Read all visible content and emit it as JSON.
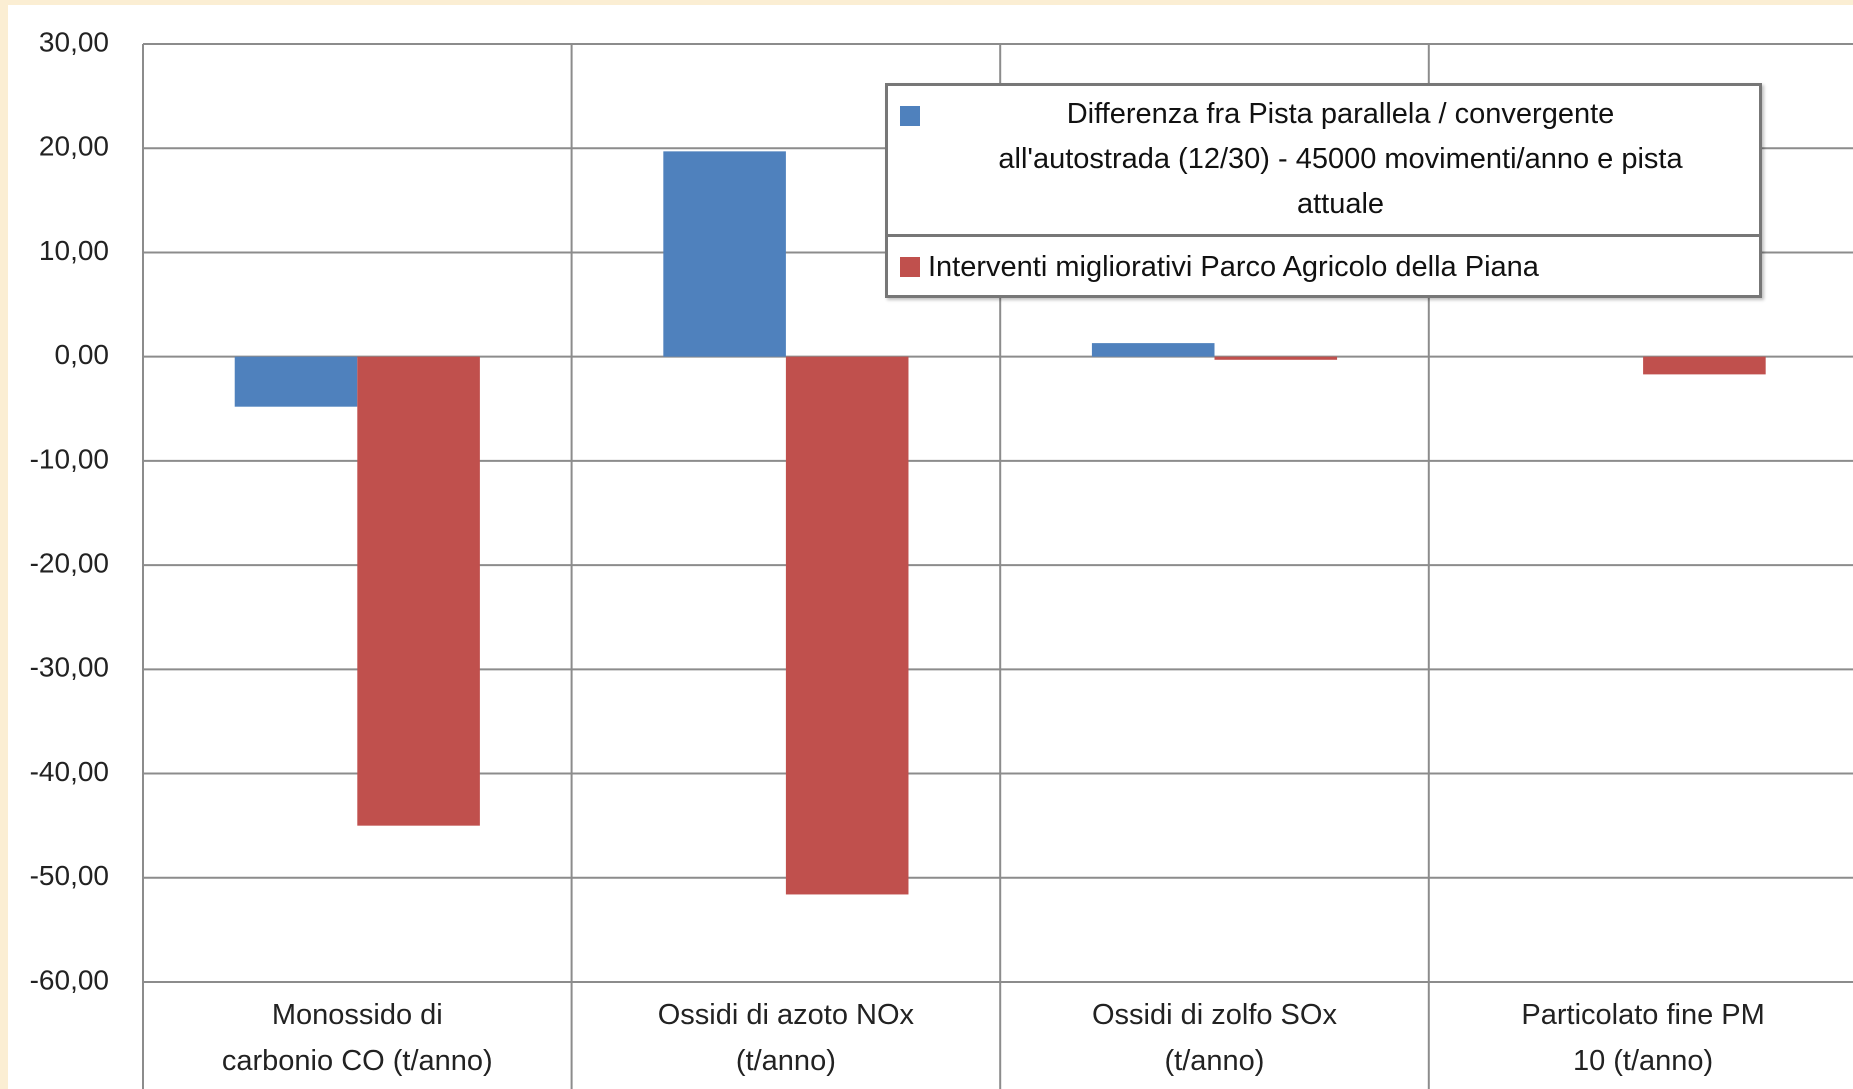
{
  "chart_data": {
    "type": "bar",
    "categories": [
      "Monossido di\ncarbonio CO (t/anno)",
      "Ossidi di azoto NOx\n(t/anno)",
      "Ossidi di zolfo SOx\n(t/anno)",
      "Particolato fine PM\n10  (t/anno)"
    ],
    "series": [
      {
        "name": "Differenza fra Pista parallela / convergente\nall'autostrada  (12/30) - 45000 movimenti/anno e pista\nattuale",
        "color": "#4f81bd",
        "values": [
          -4.8,
          19.7,
          1.3,
          0
        ]
      },
      {
        "name": "Interventi migliorativi Parco Agricolo della Piana",
        "color": "#c0504d",
        "values": [
          -45,
          -51.6,
          -0.3,
          -1.7
        ]
      }
    ],
    "ylim": [
      -60,
      30
    ],
    "yticks": [
      {
        "value": -60,
        "label": "-60,00"
      },
      {
        "value": -50,
        "label": "-50,00"
      },
      {
        "value": -40,
        "label": "-40,00"
      },
      {
        "value": -30,
        "label": "-30,00"
      },
      {
        "value": -20,
        "label": "-20,00"
      },
      {
        "value": -10,
        "label": "-10,00"
      },
      {
        "value": 0,
        "label": "0,00"
      },
      {
        "value": 10,
        "label": "10,00"
      },
      {
        "value": 20,
        "label": "20,00"
      },
      {
        "value": 30,
        "label": "30,00"
      }
    ],
    "grid": true
  }
}
